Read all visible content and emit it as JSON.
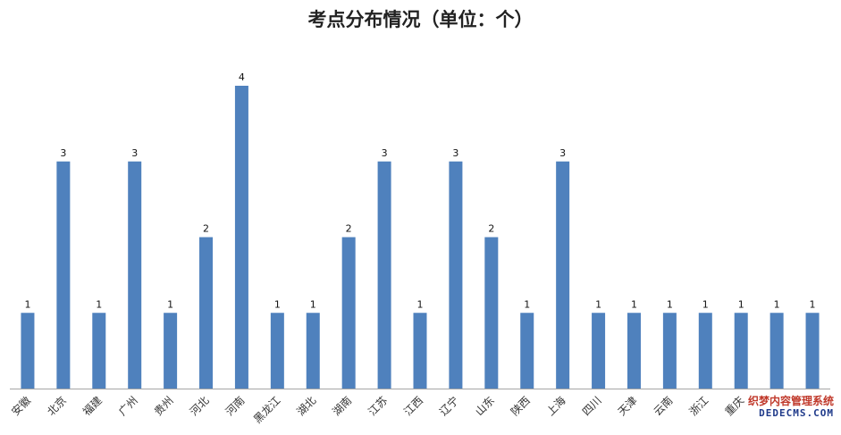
{
  "chart_data": {
    "type": "bar",
    "title": "考点分布情况（单位：个）",
    "categories": [
      "安徽",
      "北京",
      "福建",
      "广州",
      "贵州",
      "河北",
      "河南",
      "黑龙江",
      "湖北",
      "湖南",
      "江苏",
      "江西",
      "辽宁",
      "山东",
      "陕西",
      "上海",
      "四川",
      "天津",
      "云南",
      "浙江",
      "重庆",
      "",
      ""
    ],
    "values": [
      1,
      3,
      1,
      3,
      1,
      2,
      4,
      1,
      1,
      2,
      3,
      1,
      3,
      2,
      1,
      3,
      1,
      1,
      1,
      1,
      1,
      1,
      1
    ],
    "ylim": [
      0,
      4
    ],
    "grid": false,
    "legend": "none",
    "bar_color": "#4f81bd",
    "axis_color": "#a6a6a6"
  },
  "watermark": {
    "line1": "织梦内容管理系统",
    "line2": "DEDECMS.COM"
  }
}
